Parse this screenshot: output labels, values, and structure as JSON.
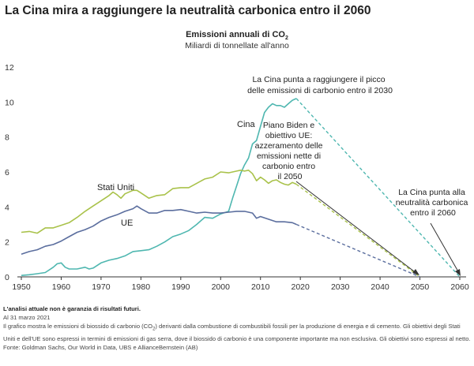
{
  "title": "La Cina mira a raggiungere la neutralità carbonica entro il 2060",
  "colors": {
    "china": "#4fb7b0",
    "usa": "#a9c24a",
    "eu": "#5b6e9e"
  },
  "chart_data": {
    "type": "line",
    "subtitle_main": "Emissioni annuali di CO",
    "subtitle_sub_char": "2",
    "subtitle_units": "Miliardi di tonnellate all'anno",
    "xlim": [
      1950,
      2060
    ],
    "ylim": [
      0,
      12
    ],
    "x_ticks": [
      "1950",
      "1960",
      "1970",
      "1980",
      "1990",
      "2000",
      "2010",
      "2020",
      "2030",
      "2040",
      "2050",
      "2060"
    ],
    "y_ticks": [
      "0",
      "2",
      "4",
      "6",
      "8",
      "10",
      "12"
    ],
    "series": [
      {
        "name": "Cina",
        "color": "#4fb7b0",
        "x": [
          1950,
          1952,
          1954,
          1956,
          1958,
          1959,
          1960,
          1961,
          1962,
          1964,
          1966,
          1967,
          1968,
          1970,
          1972,
          1974,
          1976,
          1978,
          1980,
          1982,
          1984,
          1986,
          1988,
          1990,
          1992,
          1994,
          1996,
          1998,
          2000,
          2002,
          2003,
          2004,
          2005,
          2006,
          2007,
          2008,
          2009,
          2010,
          2011,
          2012,
          2013,
          2014,
          2015,
          2016,
          2017,
          2018,
          2019
        ],
        "y": [
          0.08,
          0.12,
          0.18,
          0.25,
          0.55,
          0.75,
          0.8,
          0.55,
          0.45,
          0.45,
          0.55,
          0.45,
          0.5,
          0.8,
          0.95,
          1.05,
          1.2,
          1.45,
          1.5,
          1.55,
          1.75,
          2.0,
          2.3,
          2.45,
          2.65,
          3.0,
          3.4,
          3.35,
          3.6,
          3.75,
          4.5,
          5.2,
          5.9,
          6.4,
          6.8,
          7.6,
          7.8,
          8.6,
          9.4,
          9.7,
          9.9,
          9.8,
          9.8,
          9.7,
          9.9,
          10.1,
          10.2
        ],
        "projection": {
          "x": [
            2019,
            2060
          ],
          "y": [
            10.2,
            0
          ]
        }
      },
      {
        "name": "Stati Uniti",
        "color": "#a9c24a",
        "x": [
          1950,
          1952,
          1954,
          1956,
          1958,
          1960,
          1962,
          1964,
          1966,
          1968,
          1970,
          1972,
          1973,
          1974,
          1975,
          1976,
          1978,
          1979,
          1980,
          1982,
          1984,
          1986,
          1988,
          1990,
          1992,
          1994,
          1996,
          1998,
          2000,
          2002,
          2004,
          2005,
          2006,
          2007,
          2008,
          2009,
          2010,
          2011,
          2012,
          2013,
          2014,
          2015,
          2016,
          2017,
          2018,
          2019
        ],
        "y": [
          2.55,
          2.6,
          2.5,
          2.8,
          2.8,
          2.95,
          3.1,
          3.4,
          3.75,
          4.05,
          4.35,
          4.65,
          4.85,
          4.7,
          4.5,
          4.75,
          4.95,
          4.95,
          4.8,
          4.5,
          4.65,
          4.7,
          5.05,
          5.1,
          5.1,
          5.35,
          5.6,
          5.7,
          6.0,
          5.95,
          6.05,
          6.1,
          6.05,
          6.1,
          5.9,
          5.5,
          5.7,
          5.55,
          5.35,
          5.5,
          5.55,
          5.4,
          5.3,
          5.25,
          5.4,
          5.3
        ],
        "projection": {
          "x": [
            2019,
            2050
          ],
          "y": [
            5.3,
            0
          ]
        }
      },
      {
        "name": "UE",
        "color": "#5b6e9e",
        "x": [
          1950,
          1952,
          1954,
          1956,
          1958,
          1960,
          1962,
          1964,
          1966,
          1968,
          1970,
          1972,
          1974,
          1976,
          1978,
          1979,
          1980,
          1982,
          1984,
          1986,
          1988,
          1990,
          1992,
          1994,
          1996,
          1998,
          2000,
          2002,
          2004,
          2006,
          2008,
          2009,
          2010,
          2012,
          2014,
          2016,
          2018,
          2019
        ],
        "y": [
          1.3,
          1.45,
          1.55,
          1.75,
          1.85,
          2.05,
          2.3,
          2.55,
          2.7,
          2.9,
          3.2,
          3.4,
          3.55,
          3.75,
          3.9,
          4.05,
          3.9,
          3.65,
          3.65,
          3.8,
          3.8,
          3.85,
          3.75,
          3.65,
          3.7,
          3.65,
          3.65,
          3.7,
          3.75,
          3.75,
          3.65,
          3.35,
          3.45,
          3.3,
          3.15,
          3.15,
          3.1,
          3.0
        ],
        "projection": {
          "x": [
            2019,
            2050
          ],
          "y": [
            3.0,
            0
          ]
        }
      }
    ],
    "annotations": [
      {
        "id": "china-peak",
        "lines": [
          "La Cina punta a raggiungere il picco",
          "delle emissioni di carbonio entro il 2030"
        ]
      },
      {
        "id": "biden-eu",
        "lines": [
          "Piano Biden e",
          "obiettivo UE:",
          "azzeramento delle",
          "emissioni nette di",
          "carbonio entro",
          "il 2050"
        ]
      },
      {
        "id": "china-neutral",
        "lines": [
          "La Cina punta alla",
          "neutralità carbonica",
          "entro il 2060"
        ]
      }
    ],
    "grid": false,
    "legend": "inline labels"
  },
  "notes": {
    "disclaimer": "L'analisi attuale non è garanzia di risultati futuri.",
    "date": "Al 31 marzo 2021",
    "description_pre": "Il grafico mostra le emissioni di biossido di carbonio (CO",
    "description_sub": "2",
    "description_post": ") derivanti dalla combustione di combustibili fossili per la produzione di energia e di cemento. Gli obiettivi degli Stati Uniti e dell'UE sono espressi in termini di emissioni di gas serra, dove il biossido di carbonio è una componente importante ma non esclusiva. Gli obiettivi sono espressi al netto.",
    "source": "Fonte: Goldman Sachs, Our World in Data, UBS e AllianceBernstein (AB)"
  }
}
